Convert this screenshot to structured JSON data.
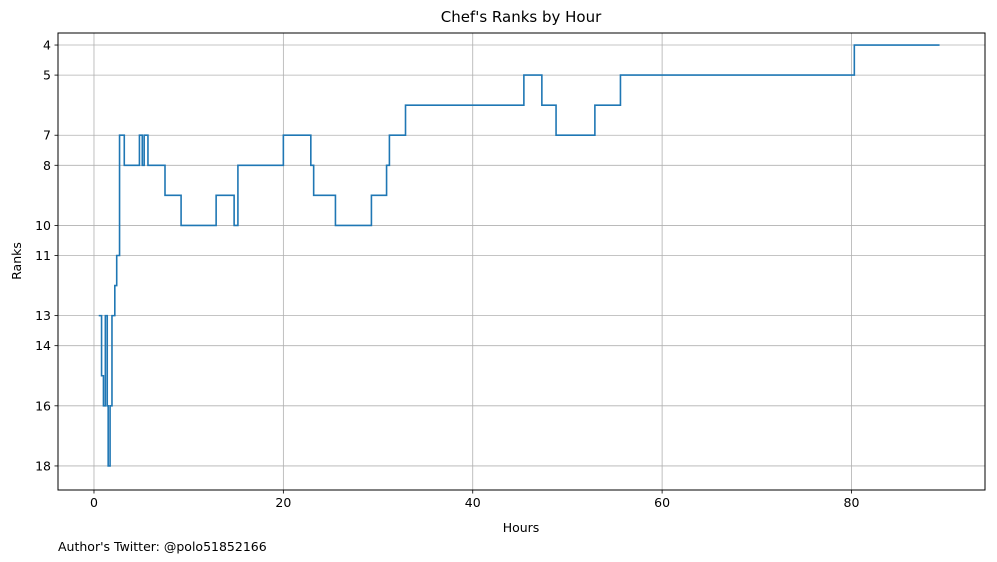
{
  "chart_data": {
    "type": "line",
    "step": "post",
    "title": "Chef's Ranks by Hour",
    "xlabel": "Hours",
    "ylabel": "Ranks",
    "xlim": [
      -3.8,
      94.1
    ],
    "ylim": [
      18.8,
      3.6
    ],
    "y_inverted": true,
    "grid": true,
    "xticks": [
      0,
      20,
      40,
      60,
      80
    ],
    "yticks": [
      4,
      5,
      7,
      8,
      10,
      11,
      13,
      14,
      16,
      18
    ],
    "line_color": "#1f77b4",
    "series": [
      {
        "x": [
          0.5,
          0.8,
          1.0,
          1.2,
          1.4,
          1.5,
          1.7,
          1.9,
          2.2,
          2.4,
          2.7,
          3.2,
          4.8,
          5.1,
          5.3,
          5.7,
          7.5,
          9.2,
          12.9,
          14.8,
          15.2,
          20.0,
          22.9,
          23.2,
          25.5,
          29.3,
          30.9,
          31.2,
          32.9,
          45.4,
          47.3,
          48.8,
          52.9,
          55.6,
          80.3,
          89.3
        ],
        "y": [
          13,
          15,
          16,
          13,
          16,
          18,
          16,
          13,
          12,
          11,
          7,
          8,
          7,
          8,
          7,
          8,
          9,
          10,
          9,
          10,
          8,
          7,
          8,
          9,
          10,
          9,
          8,
          7,
          6,
          5,
          6,
          7,
          6,
          5,
          4,
          4
        ]
      }
    ],
    "footnote": "Author's Twitter: @polo51852166"
  }
}
